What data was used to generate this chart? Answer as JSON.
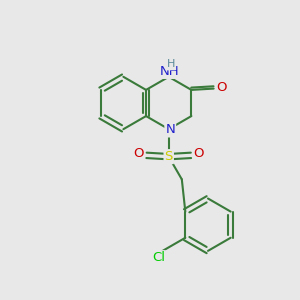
{
  "background_color": "#e8e8e8",
  "bond_color": "#3a7a3a",
  "bond_width": 1.5,
  "atom_colors": {
    "N": "#2020cc",
    "O": "#cc0000",
    "S": "#cccc00",
    "Cl": "#00cc00",
    "H": "#5a8a9a",
    "C": "#3a7a3a"
  },
  "font_size": 9.5,
  "fig_size": [
    3.0,
    3.0
  ],
  "dpi": 100
}
